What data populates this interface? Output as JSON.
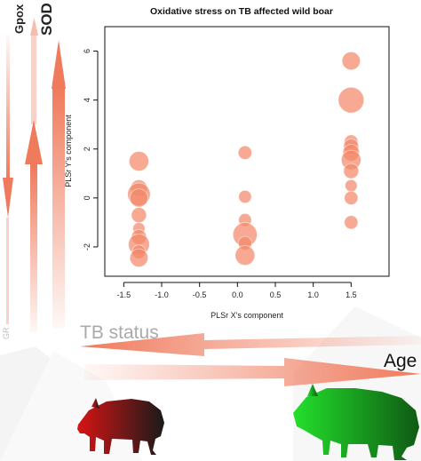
{
  "chart_data": {
    "type": "scatter",
    "title": "Oxidative stress on TB affected wild boar",
    "xlabel": "PLSr X's component",
    "ylabel": "PLSr Y's component",
    "xlim": [
      -1.75,
      2.0
    ],
    "ylim": [
      -3.2,
      7.0
    ],
    "xticks": [
      "-1.5",
      "-1.0",
      "-0.5",
      "0.0",
      "0.5",
      "1.0",
      "1.5"
    ],
    "xtick_values": [
      -1.5,
      -1.0,
      -0.5,
      0.0,
      0.5,
      1.0,
      1.5
    ],
    "yticks": [
      "-2",
      "0",
      "2",
      "4",
      "6"
    ],
    "ytick_values": [
      -2,
      0,
      2,
      4,
      6
    ],
    "grid": false,
    "marker_color": "#f4886a",
    "points": [
      {
        "x": -1.3,
        "y": 1.5,
        "size": 1.3
      },
      {
        "x": -1.3,
        "y": 0.4,
        "size": 1.1
      },
      {
        "x": -1.3,
        "y": 0.15,
        "size": 1.5
      },
      {
        "x": -1.3,
        "y": 0.0,
        "size": 1.2
      },
      {
        "x": -1.3,
        "y": -0.7,
        "size": 1.0
      },
      {
        "x": -1.3,
        "y": -1.25,
        "size": 0.8
      },
      {
        "x": -1.3,
        "y": -1.6,
        "size": 1.0
      },
      {
        "x": -1.3,
        "y": -1.9,
        "size": 1.4
      },
      {
        "x": -1.3,
        "y": -2.2,
        "size": 0.9
      },
      {
        "x": -1.3,
        "y": -2.45,
        "size": 1.2
      },
      {
        "x": 0.1,
        "y": 1.85,
        "size": 0.9
      },
      {
        "x": 0.1,
        "y": 0.05,
        "size": 0.85
      },
      {
        "x": 0.1,
        "y": -0.9,
        "size": 0.85
      },
      {
        "x": 0.1,
        "y": -1.5,
        "size": 1.6
      },
      {
        "x": 0.1,
        "y": -1.85,
        "size": 0.9
      },
      {
        "x": 0.1,
        "y": -2.35,
        "size": 1.3
      },
      {
        "x": 1.5,
        "y": 5.6,
        "size": 1.2
      },
      {
        "x": 1.5,
        "y": 4.0,
        "size": 1.7
      },
      {
        "x": 1.5,
        "y": 2.3,
        "size": 0.9
      },
      {
        "x": 1.5,
        "y": 2.1,
        "size": 1.0
      },
      {
        "x": 1.5,
        "y": 1.85,
        "size": 1.1
      },
      {
        "x": 1.5,
        "y": 1.55,
        "size": 1.3
      },
      {
        "x": 1.5,
        "y": 1.1,
        "size": 1.0
      },
      {
        "x": 1.5,
        "y": 0.5,
        "size": 0.8
      },
      {
        "x": 1.5,
        "y": 0.0,
        "size": 0.9
      },
      {
        "x": 1.5,
        "y": -1.0,
        "size": 0.9
      }
    ]
  },
  "labels": {
    "gpox": "Gpox",
    "sod": "SOD",
    "gr": "GR",
    "tb_status": "TB status",
    "age": "Age"
  },
  "colors": {
    "arrow": "#f07a5c",
    "boar_young_start": "#d81414",
    "boar_young_end": "#1a1a1a",
    "boar_adult_start": "#23e02c",
    "boar_adult_end": "#0f5a14"
  }
}
